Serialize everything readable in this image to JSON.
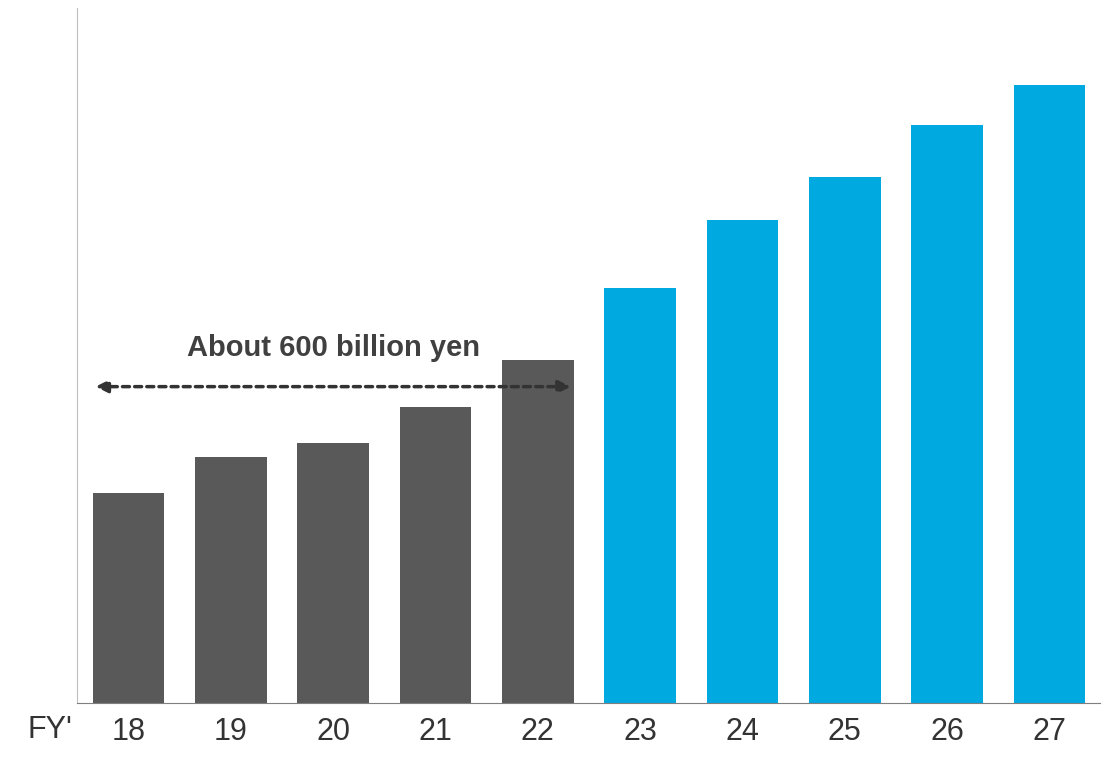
{
  "chart_data": {
    "type": "bar",
    "categories": [
      "18",
      "19",
      "20",
      "21",
      "22",
      "23",
      "24",
      "25",
      "26",
      "27"
    ],
    "xlabel": "FY'",
    "values": [
      93,
      109,
      115,
      131,
      152,
      184,
      214,
      233,
      256,
      274
    ],
    "colors": [
      "#595959",
      "#595959",
      "#595959",
      "#595959",
      "#595959",
      "#00a9e0",
      "#00a9e0",
      "#00a9e0",
      "#00a9e0",
      "#00a9e0"
    ],
    "ylim": [
      0,
      308
    ],
    "yticks": [],
    "tick_labels": "x",
    "grid": false,
    "annotation": {
      "text": "About 600 billion yen",
      "from": "18",
      "to": "22"
    }
  }
}
